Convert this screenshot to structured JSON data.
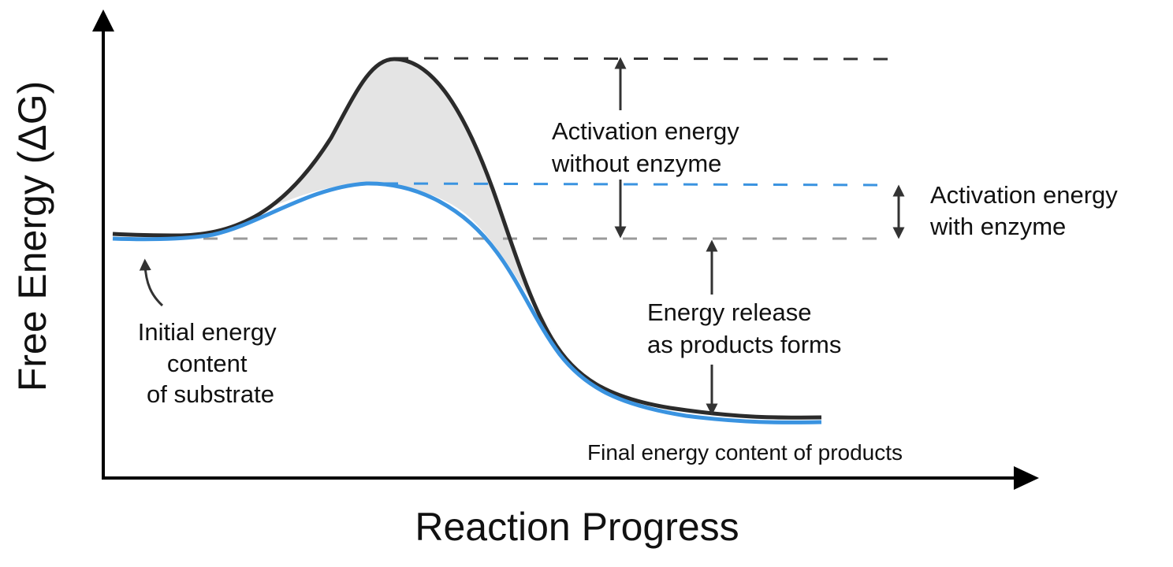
{
  "axes": {
    "y_title": "Free Energy (ΔG)",
    "x_title": "Reaction Progress"
  },
  "curves": {
    "without_enzyme_color": "#2b2b2b",
    "with_enzyme_color": "#3a93e0",
    "difference_fill": "#e4e4e4"
  },
  "reference_lines": {
    "peak_without_color": "#333333",
    "peak_with_color": "#3a93e0",
    "initial_color": "#9a9a9a"
  },
  "annotations": {
    "activation_without": [
      "Activation energy",
      "without enzyme"
    ],
    "activation_with": [
      "Activation energy",
      "with enzyme"
    ],
    "energy_release": [
      "Energy release",
      "as products forms"
    ],
    "initial": [
      "Initial energy",
      "content",
      "of substrate"
    ],
    "final": "Final energy content of products"
  }
}
